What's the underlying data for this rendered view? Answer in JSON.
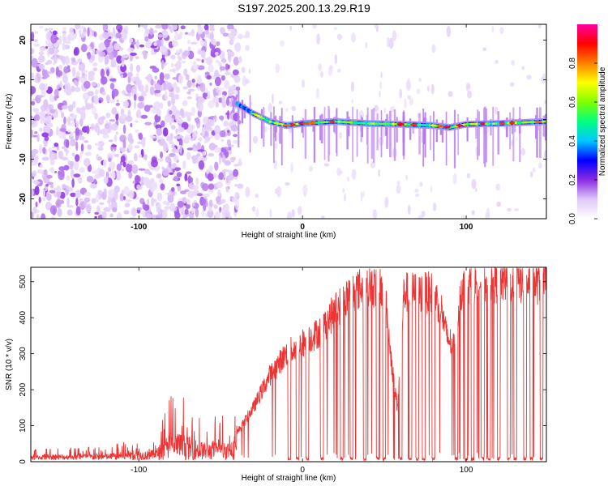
{
  "title": "S197.2025.200.13.29.R19",
  "chart_data": [
    {
      "type": "heatmap",
      "xlabel": "Height of straight line (km)",
      "ylabel": "Frequency (Hz)",
      "xlim": [
        -166,
        149
      ],
      "ylim": [
        -25,
        24
      ],
      "xticks": [
        -100,
        0,
        100
      ],
      "yticks": [
        -20,
        -10,
        0,
        10,
        20
      ],
      "colorbar": {
        "label": "Normalized spectral amplitude",
        "range": [
          0.0,
          1.0
        ],
        "ticks": [
          0.0,
          0.2,
          0.4,
          0.6,
          0.8
        ],
        "tick_labels": [
          "0.0",
          "0.2",
          "0.4",
          "0.6",
          "0.8"
        ],
        "colormap": [
          "#ffffff",
          "#e0c8f8",
          "#8a2be2",
          "#0000ff",
          "#00c8ff",
          "#00ff80",
          "#80ff00",
          "#ffff00",
          "#ff8000",
          "#ff0000",
          "#ff00a0"
        ]
      },
      "ridge": [
        {
          "x": -40,
          "y": 4
        },
        {
          "x": -30,
          "y": 1.5
        },
        {
          "x": -20,
          "y": -0.5
        },
        {
          "x": -10,
          "y": -1.5
        },
        {
          "x": 0,
          "y": -1
        },
        {
          "x": 20,
          "y": -0.5
        },
        {
          "x": 40,
          "y": -1
        },
        {
          "x": 60,
          "y": -1.2
        },
        {
          "x": 80,
          "y": -1.5
        },
        {
          "x": 90,
          "y": -2
        },
        {
          "x": 100,
          "y": -1.2
        },
        {
          "x": 120,
          "y": -1
        },
        {
          "x": 149,
          "y": -0.5
        }
      ]
    },
    {
      "type": "line",
      "xlabel": "Height of straight line (km)",
      "ylabel": "SNR (10 * v/v)",
      "xlim": [
        -166,
        149
      ],
      "ylim": [
        0,
        540
      ],
      "xticks": [
        -100,
        0,
        100
      ],
      "yticks": [
        0,
        100,
        200,
        300,
        400,
        500
      ],
      "series": [
        {
          "color": "#ee3333",
          "envelope": [
            {
              "x": -166,
              "y": 20
            },
            {
              "x": -120,
              "y": 25
            },
            {
              "x": -90,
              "y": 40
            },
            {
              "x": -80,
              "y": 120
            },
            {
              "x": -60,
              "y": 70
            },
            {
              "x": -40,
              "y": 80
            },
            {
              "x": -30,
              "y": 150
            },
            {
              "x": -20,
              "y": 240
            },
            {
              "x": -10,
              "y": 300
            },
            {
              "x": 0,
              "y": 330
            },
            {
              "x": 10,
              "y": 360
            },
            {
              "x": 20,
              "y": 420
            },
            {
              "x": 30,
              "y": 470
            },
            {
              "x": 40,
              "y": 490
            },
            {
              "x": 50,
              "y": 480
            },
            {
              "x": 55,
              "y": 250
            },
            {
              "x": 58,
              "y": 150
            },
            {
              "x": 62,
              "y": 470
            },
            {
              "x": 80,
              "y": 470
            },
            {
              "x": 85,
              "y": 420
            },
            {
              "x": 88,
              "y": 350
            },
            {
              "x": 92,
              "y": 320
            },
            {
              "x": 97,
              "y": 480
            },
            {
              "x": 110,
              "y": 500
            },
            {
              "x": 130,
              "y": 500
            },
            {
              "x": 149,
              "y": 495
            }
          ],
          "dropouts_x": [
            -8,
            -3,
            3,
            12,
            24,
            30,
            38,
            46,
            50,
            60,
            66,
            70,
            74,
            80,
            94,
            100,
            104,
            110,
            114,
            120,
            126,
            130,
            136,
            140,
            146
          ]
        }
      ]
    }
  ]
}
